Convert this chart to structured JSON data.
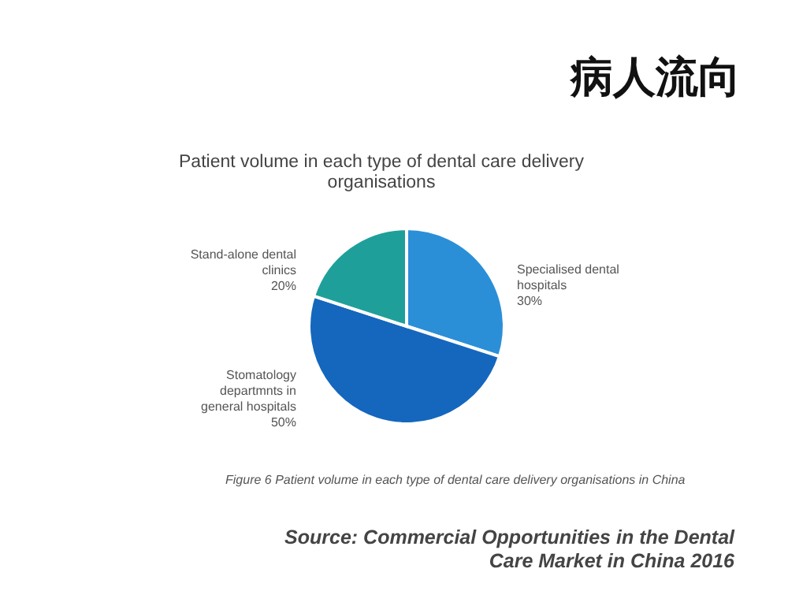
{
  "chart_data": {
    "type": "pie",
    "title": "病人流向",
    "subtitle": "Patient volume in each type of dental care delivery organisations",
    "categories": [
      "Specialised dental hospitals",
      "Stomatology departmnts in general hospitals",
      "Stand-alone dental clinics"
    ],
    "values": [
      30,
      50,
      20
    ],
    "colors": [
      "#2b8fd8",
      "#1467bd",
      "#1f9f9a"
    ],
    "value_labels": [
      "30%",
      "50%",
      "20%"
    ],
    "annotations": [
      "Figure 6 Patient volume in each type of dental care delivery organisations in China",
      "Source: Commercial Opportunities in the Dental Care Market in China 2016"
    ]
  }
}
